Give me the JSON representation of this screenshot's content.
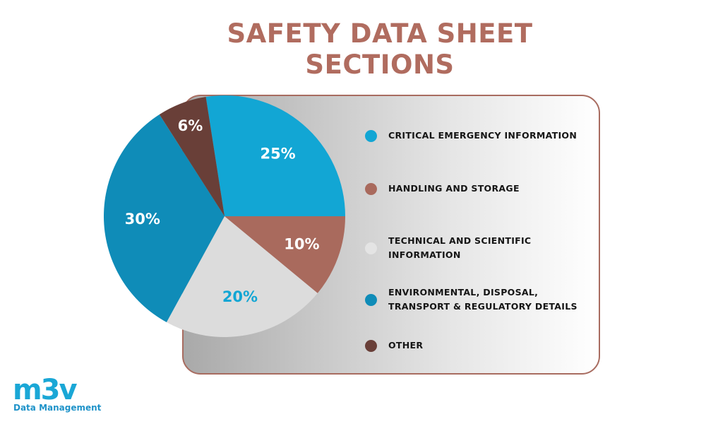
{
  "title_lines": [
    "SAFETY DATA SHEET",
    "SECTIONS"
  ],
  "chart_data": {
    "type": "pie",
    "title": "SAFETY DATA SHEET SECTIONS",
    "legend_position": "right",
    "slices": [
      {
        "label": "CRITICAL EMERGENCY INFORMATION",
        "value": 25,
        "display": "25%",
        "color": "#12a6d4",
        "label_color": "#ffffff"
      },
      {
        "label": "HANDLING AND STORAGE",
        "value": 10,
        "display": "10%",
        "color": "#a96a5d",
        "label_color": "#ffffff"
      },
      {
        "label": "TECHNICAL AND SCIENTIFIC INFORMATION",
        "value": 20,
        "display": "20%",
        "color": "#dcdcdc",
        "label_color": "#12a6d4"
      },
      {
        "label": "ENVIRONMENTAL, DISPOSAL, TRANSPORT & REGULATORY DETAILS",
        "value": 30,
        "display": "30%",
        "color": "#0f8cb8",
        "label_color": "#ffffff"
      },
      {
        "label": "OTHER",
        "value": 6,
        "display": "6%",
        "color": "#693f38",
        "label_color": "#ffffff"
      }
    ]
  },
  "legend": [
    {
      "lines": [
        "CRITICAL EMERGENCY INFORMATION"
      ],
      "color": "#12a6d4"
    },
    {
      "lines": [
        "HANDLING AND STORAGE"
      ],
      "color": "#a96a5d"
    },
    {
      "lines": [
        "TECHNICAL AND SCIENTIFIC",
        "INFORMATION"
      ],
      "color": "#e4e4e4"
    },
    {
      "lines": [
        "ENVIRONMENTAL, DISPOSAL,",
        "TRANSPORT & REGULATORY DETAILS"
      ],
      "color": "#0f8cb8"
    },
    {
      "lines": [
        "OTHER"
      ],
      "color": "#693f38"
    }
  ],
  "logo": {
    "mark": "m3v",
    "subtitle": "Data Management",
    "color": "#1aa7d6"
  }
}
